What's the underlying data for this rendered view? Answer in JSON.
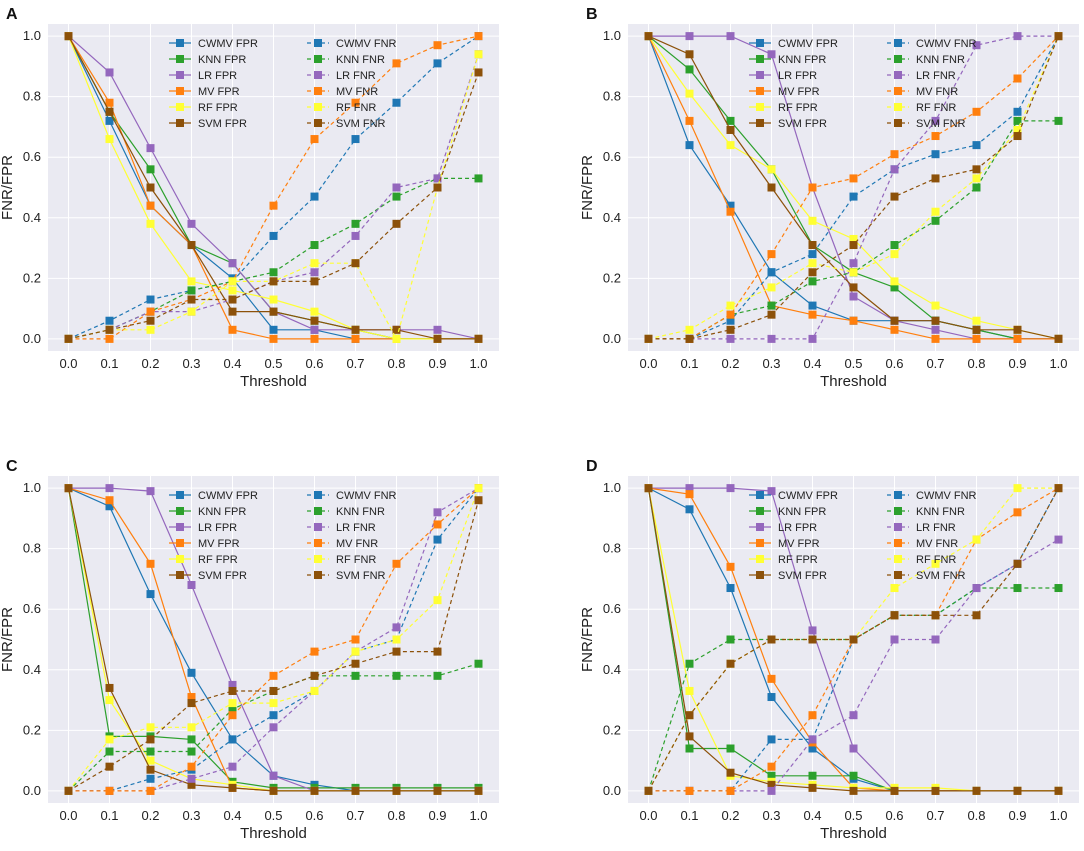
{
  "figure": {
    "xlabel": "Threshold",
    "ylabel": "FNR/FPR"
  },
  "legend_labels": [
    "CWMV FPR",
    "KNN FPR",
    "LR FPR",
    "MV FPR",
    "RF FPR",
    "SVM FPR",
    "CWMV FNR",
    "KNN FNR",
    "LR FNR",
    "MV FNR",
    "RF FNR",
    "SVM FNR"
  ],
  "colors": {
    "CWMV": "#1f77b4",
    "KNN": "#2ca02c",
    "LR": "#9467bd",
    "MV": "#ff7f0e",
    "RF": "#ffff33",
    "SVM": "#8c510a"
  },
  "chart_data": [
    {
      "panel": "A",
      "type": "line",
      "x": [
        0.0,
        0.1,
        0.2,
        0.3,
        0.4,
        0.5,
        0.6,
        0.7,
        0.8,
        0.9,
        1.0
      ],
      "x_ticks": [
        "0.0",
        "0.1",
        "0.2",
        "0.3",
        "0.4",
        "0.5",
        "0.6",
        "0.7",
        "0.8",
        "0.9",
        "1.0"
      ],
      "y_ticks": [
        "0.0",
        "0.2",
        "0.4",
        "0.6",
        "0.8",
        "1.0"
      ],
      "xlabel": "Threshold",
      "ylabel": "FNR/FPR",
      "ylim": [
        -0.04,
        1.04
      ],
      "series": [
        {
          "name": "CWMV FPR",
          "model": "CWMV",
          "style": "solid",
          "values": [
            1,
            0.72,
            0.44,
            0.31,
            0.2,
            0.03,
            0.03,
            0,
            0,
            0,
            0
          ]
        },
        {
          "name": "KNN FPR",
          "model": "KNN",
          "style": "solid",
          "values": [
            1,
            0.75,
            0.56,
            0.31,
            0.25,
            0.09,
            0.06,
            0.03,
            0,
            0,
            0
          ]
        },
        {
          "name": "LR FPR",
          "model": "LR",
          "style": "solid",
          "values": [
            1,
            0.88,
            0.63,
            0.38,
            0.25,
            0.09,
            0.03,
            0.03,
            0.03,
            0.03,
            0
          ]
        },
        {
          "name": "MV FPR",
          "model": "MV",
          "style": "solid",
          "values": [
            1,
            0.78,
            0.44,
            0.31,
            0.03,
            0,
            0,
            0,
            0,
            0,
            0
          ]
        },
        {
          "name": "RF FPR",
          "model": "RF",
          "style": "solid",
          "values": [
            1,
            0.66,
            0.38,
            0.19,
            0.16,
            0.13,
            0.09,
            0.03,
            0,
            0,
            0
          ]
        },
        {
          "name": "SVM FPR",
          "model": "SVM",
          "style": "solid",
          "values": [
            1,
            0.75,
            0.5,
            0.31,
            0.09,
            0.09,
            0.06,
            0.03,
            0.03,
            0,
            0
          ]
        },
        {
          "name": "CWMV FNR",
          "model": "CWMV",
          "style": "dashed",
          "values": [
            0,
            0.06,
            0.13,
            0.16,
            0.19,
            0.34,
            0.47,
            0.66,
            0.78,
            0.91,
            1.0
          ]
        },
        {
          "name": "KNN FNR",
          "model": "KNN",
          "style": "dashed",
          "values": [
            0,
            0.03,
            0.09,
            0.16,
            0.19,
            0.22,
            0.31,
            0.38,
            0.47,
            0.53,
            0.53
          ]
        },
        {
          "name": "LR FNR",
          "model": "LR",
          "style": "dashed",
          "values": [
            0,
            0.03,
            0.09,
            0.09,
            0.13,
            0.19,
            0.22,
            0.34,
            0.5,
            0.53,
            0.94
          ]
        },
        {
          "name": "MV FNR",
          "model": "MV",
          "style": "dashed",
          "values": [
            0,
            0,
            0.09,
            0.13,
            0.19,
            0.44,
            0.66,
            0.78,
            0.91,
            0.97,
            1.0
          ]
        },
        {
          "name": "RF FNR",
          "model": "RF",
          "style": "dashed",
          "values": [
            0,
            0.03,
            0.03,
            0.09,
            0.19,
            0.19,
            0.25,
            0.25,
            0,
            0.5,
            0.94
          ]
        },
        {
          "name": "SVM FNR",
          "model": "SVM",
          "style": "dashed",
          "values": [
            0,
            0.03,
            0.06,
            0.13,
            0.13,
            0.19,
            0.19,
            0.25,
            0.38,
            0.5,
            0.88
          ]
        }
      ]
    },
    {
      "panel": "B",
      "type": "line",
      "x": [
        0.0,
        0.1,
        0.2,
        0.3,
        0.4,
        0.5,
        0.6,
        0.7,
        0.8,
        0.9,
        1.0
      ],
      "x_ticks": [
        "0.0",
        "0.1",
        "0.2",
        "0.3",
        "0.4",
        "0.5",
        "0.6",
        "0.7",
        "0.8",
        "0.9",
        "1.0"
      ],
      "y_ticks": [
        "0.0",
        "0.2",
        "0.4",
        "0.6",
        "0.8",
        "1.0"
      ],
      "xlabel": "Threshold",
      "ylabel": "FNR/FPR",
      "ylim": [
        -0.04,
        1.04
      ],
      "series": [
        {
          "name": "CWMV FPR",
          "model": "CWMV",
          "style": "solid",
          "values": [
            1,
            0.64,
            0.44,
            0.22,
            0.11,
            0.06,
            0.06,
            0.06,
            0.03,
            0,
            0
          ]
        },
        {
          "name": "KNN FPR",
          "model": "KNN",
          "style": "solid",
          "values": [
            1,
            0.89,
            0.72,
            0.56,
            0.31,
            0.22,
            0.17,
            0.06,
            0.03,
            0,
            0
          ]
        },
        {
          "name": "LR FPR",
          "model": "LR",
          "style": "solid",
          "values": [
            1,
            1,
            1,
            0.94,
            0.5,
            0.14,
            0.06,
            0.03,
            0,
            0,
            0
          ]
        },
        {
          "name": "MV FPR",
          "model": "MV",
          "style": "solid",
          "values": [
            1,
            0.72,
            0.42,
            0.11,
            0.08,
            0.06,
            0.03,
            0,
            0,
            0,
            0
          ]
        },
        {
          "name": "RF FPR",
          "model": "RF",
          "style": "solid",
          "values": [
            1,
            0.81,
            0.64,
            0.56,
            0.39,
            0.33,
            0.19,
            0.11,
            0.06,
            0.03,
            0
          ]
        },
        {
          "name": "SVM FPR",
          "model": "SVM",
          "style": "solid",
          "values": [
            1,
            0.94,
            0.69,
            0.5,
            0.31,
            0.17,
            0.06,
            0.06,
            0.03,
            0.03,
            0
          ]
        },
        {
          "name": "CWMV FNR",
          "model": "CWMV",
          "style": "dashed",
          "values": [
            0,
            0,
            0.06,
            0.22,
            0.28,
            0.47,
            0.56,
            0.61,
            0.64,
            0.75,
            1.0
          ]
        },
        {
          "name": "KNN FNR",
          "model": "KNN",
          "style": "dashed",
          "values": [
            0,
            0,
            0.08,
            0.11,
            0.19,
            0.22,
            0.31,
            0.39,
            0.5,
            0.72,
            0.72
          ]
        },
        {
          "name": "LR FNR",
          "model": "LR",
          "style": "dashed",
          "values": [
            0,
            0,
            0,
            0,
            0,
            0.25,
            0.56,
            0.72,
            0.97,
            1.0,
            1.0
          ]
        },
        {
          "name": "MV FNR",
          "model": "MV",
          "style": "dashed",
          "values": [
            0,
            0,
            0.08,
            0.28,
            0.5,
            0.53,
            0.61,
            0.67,
            0.75,
            0.86,
            1.0
          ]
        },
        {
          "name": "RF FNR",
          "model": "RF",
          "style": "dashed",
          "values": [
            0,
            0.03,
            0.11,
            0.17,
            0.25,
            0.22,
            0.28,
            0.42,
            0.53,
            0.69,
            1.0
          ]
        },
        {
          "name": "SVM FNR",
          "model": "SVM",
          "style": "dashed",
          "values": [
            0,
            0,
            0.03,
            0.08,
            0.22,
            0.31,
            0.47,
            0.53,
            0.56,
            0.67,
            1.0
          ]
        }
      ]
    },
    {
      "panel": "C",
      "type": "line",
      "x": [
        0.0,
        0.1,
        0.2,
        0.3,
        0.4,
        0.5,
        0.6,
        0.7,
        0.8,
        0.9,
        1.0
      ],
      "x_ticks": [
        "0.0",
        "0.1",
        "0.2",
        "0.3",
        "0.4",
        "0.5",
        "0.6",
        "0.7",
        "0.8",
        "0.9",
        "1.0"
      ],
      "y_ticks": [
        "0.0",
        "0.2",
        "0.4",
        "0.6",
        "0.8",
        "1.0"
      ],
      "xlabel": "Threshold",
      "ylabel": "FNR/FPR",
      "ylim": [
        -0.04,
        1.04
      ],
      "series": [
        {
          "name": "CWMV FPR",
          "model": "CWMV",
          "style": "solid",
          "values": [
            1,
            0.94,
            0.65,
            0.39,
            0.17,
            0.05,
            0.02,
            0,
            0,
            0,
            0
          ]
        },
        {
          "name": "KNN FPR",
          "model": "KNN",
          "style": "solid",
          "values": [
            1,
            0.18,
            0.18,
            0.17,
            0.03,
            0.01,
            0.01,
            0.01,
            0.01,
            0.01,
            0.01
          ]
        },
        {
          "name": "LR FPR",
          "model": "LR",
          "style": "solid",
          "values": [
            1,
            1,
            0.99,
            0.68,
            0.35,
            0.05,
            0,
            0,
            0,
            0,
            0
          ]
        },
        {
          "name": "MV FPR",
          "model": "MV",
          "style": "solid",
          "values": [
            1,
            0.96,
            0.75,
            0.31,
            0.01,
            0,
            0,
            0,
            0,
            0,
            0
          ]
        },
        {
          "name": "RF FPR",
          "model": "RF",
          "style": "solid",
          "values": [
            1,
            0.3,
            0.1,
            0.04,
            0.02,
            0,
            0,
            0,
            0,
            0,
            0
          ]
        },
        {
          "name": "SVM FPR",
          "model": "SVM",
          "style": "solid",
          "values": [
            1,
            0.34,
            0.07,
            0.02,
            0.01,
            0,
            0,
            0,
            0,
            0,
            0
          ]
        },
        {
          "name": "CWMV FNR",
          "model": "CWMV",
          "style": "dashed",
          "values": [
            0,
            0,
            0.04,
            0.07,
            0.17,
            0.25,
            0.33,
            0.46,
            0.5,
            0.83,
            1.0
          ]
        },
        {
          "name": "KNN FNR",
          "model": "KNN",
          "style": "dashed",
          "values": [
            0,
            0.13,
            0.13,
            0.13,
            0.27,
            0.33,
            0.38,
            0.38,
            0.38,
            0.38,
            0.42
          ]
        },
        {
          "name": "LR FNR",
          "model": "LR",
          "style": "dashed",
          "values": [
            0,
            0,
            0,
            0.04,
            0.08,
            0.21,
            0.33,
            0.46,
            0.54,
            0.92,
            1.0
          ]
        },
        {
          "name": "MV FNR",
          "model": "MV",
          "style": "dashed",
          "values": [
            0,
            0,
            0,
            0.08,
            0.25,
            0.38,
            0.46,
            0.5,
            0.75,
            0.88,
            1.0
          ]
        },
        {
          "name": "RF FNR",
          "model": "RF",
          "style": "dashed",
          "values": [
            0,
            0.17,
            0.21,
            0.21,
            0.29,
            0.29,
            0.33,
            0.46,
            0.5,
            0.63,
            1.0
          ]
        },
        {
          "name": "SVM FNR",
          "model": "SVM",
          "style": "dashed",
          "values": [
            0,
            0.08,
            0.17,
            0.29,
            0.33,
            0.33,
            0.38,
            0.42,
            0.46,
            0.46,
            0.96
          ]
        }
      ]
    },
    {
      "panel": "D",
      "type": "line",
      "x": [
        0.0,
        0.1,
        0.2,
        0.3,
        0.4,
        0.5,
        0.6,
        0.7,
        0.8,
        0.9,
        1.0
      ],
      "x_ticks": [
        "0.0",
        "0.1",
        "0.2",
        "0.3",
        "0.4",
        "0.5",
        "0.6",
        "0.7",
        "0.8",
        "0.9",
        "1.0"
      ],
      "y_ticks": [
        "0.0",
        "0.2",
        "0.4",
        "0.6",
        "0.8",
        "1.0"
      ],
      "xlabel": "Threshold",
      "ylabel": "FNR/FPR",
      "ylim": [
        -0.04,
        1.04
      ],
      "series": [
        {
          "name": "CWMV FPR",
          "model": "CWMV",
          "style": "solid",
          "values": [
            1,
            0.93,
            0.67,
            0.31,
            0.14,
            0.04,
            0,
            0,
            0,
            0,
            0
          ]
        },
        {
          "name": "KNN FPR",
          "model": "KNN",
          "style": "solid",
          "values": [
            1,
            0.14,
            0.14,
            0.05,
            0.05,
            0.05,
            0,
            0,
            0,
            0,
            0
          ]
        },
        {
          "name": "LR FPR",
          "model": "LR",
          "style": "solid",
          "values": [
            1,
            1,
            1,
            0.99,
            0.53,
            0.14,
            0,
            0,
            0,
            0,
            0
          ]
        },
        {
          "name": "MV FPR",
          "model": "MV",
          "style": "solid",
          "values": [
            1,
            0.98,
            0.74,
            0.37,
            0.16,
            0.01,
            0,
            0,
            0,
            0,
            0
          ]
        },
        {
          "name": "RF FPR",
          "model": "RF",
          "style": "solid",
          "values": [
            1,
            0.33,
            0.05,
            0.03,
            0.02,
            0.01,
            0.01,
            0.01,
            0,
            0,
            0
          ]
        },
        {
          "name": "SVM FPR",
          "model": "SVM",
          "style": "solid",
          "values": [
            1,
            0.18,
            0.06,
            0.02,
            0.01,
            0,
            0,
            0,
            0,
            0,
            0
          ]
        },
        {
          "name": "CWMV FNR",
          "model": "CWMV",
          "style": "dashed",
          "values": [
            0,
            0,
            0,
            0.17,
            0.17,
            0.5,
            0.58,
            0.58,
            0.67,
            0.75,
            1.0
          ]
        },
        {
          "name": "KNN FNR",
          "model": "KNN",
          "style": "dashed",
          "values": [
            0,
            0.42,
            0.5,
            0.5,
            0.5,
            0.5,
            0.58,
            0.58,
            0.67,
            0.67,
            0.67
          ]
        },
        {
          "name": "LR FNR",
          "model": "LR",
          "style": "dashed",
          "values": [
            0,
            0,
            0,
            0,
            0.17,
            0.25,
            0.5,
            0.5,
            0.67,
            0.75,
            0.83
          ]
        },
        {
          "name": "MV FNR",
          "model": "MV",
          "style": "dashed",
          "values": [
            0,
            0,
            0,
            0.08,
            0.25,
            0.5,
            0.58,
            0.58,
            0.83,
            0.92,
            1.0
          ]
        },
        {
          "name": "RF FNR",
          "model": "RF",
          "style": "dashed",
          "values": [
            0,
            0.25,
            0.42,
            0.5,
            0.5,
            0.5,
            0.67,
            0.75,
            0.83,
            1.0,
            1.0
          ]
        },
        {
          "name": "SVM FNR",
          "model": "SVM",
          "style": "dashed",
          "values": [
            0,
            0.25,
            0.42,
            0.5,
            0.5,
            0.5,
            0.58,
            0.58,
            0.58,
            0.75,
            1.0
          ]
        }
      ]
    }
  ]
}
